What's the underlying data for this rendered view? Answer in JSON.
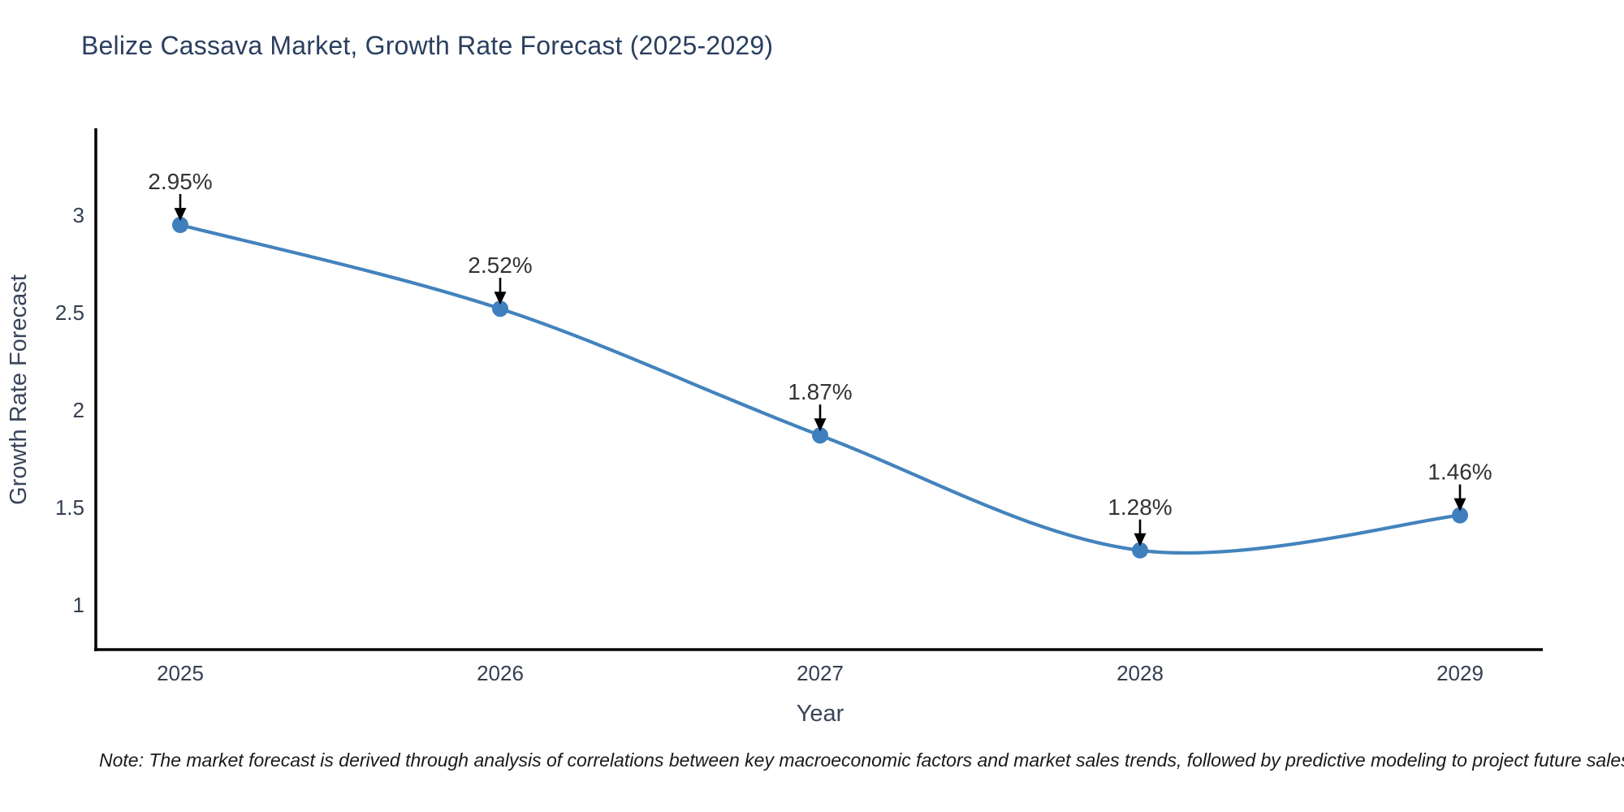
{
  "title": "Belize Cassava Market, Growth Rate Forecast (2025-2029)",
  "note": "Note: The market forecast is derived through analysis of correlations between key macroeconomic factors and market sales trends, followed by predictive modeling to project future sales",
  "chart_data": {
    "type": "line",
    "title": "Belize Cassava Market, Growth Rate Forecast (2025-2029)",
    "xlabel": "Year",
    "ylabel": "Growth Rate Forecast",
    "x": [
      2025,
      2026,
      2027,
      2028,
      2029
    ],
    "y": [
      2.95,
      2.52,
      1.87,
      1.28,
      1.46
    ],
    "point_labels": [
      "2.95%",
      "2.52%",
      "1.87%",
      "1.28%",
      "1.46%"
    ],
    "xticks": [
      "2025",
      "2026",
      "2027",
      "2028",
      "2029"
    ],
    "yticks": [
      "1",
      "1.5",
      "2",
      "2.5",
      "3"
    ],
    "ytick_values": [
      1,
      1.5,
      2,
      2.5,
      3
    ],
    "xlim": [
      2024.74,
      2029.26
    ],
    "ylim": [
      0.77,
      3.44
    ],
    "grid": false,
    "legend": "none",
    "line_shape": "spline",
    "colors": {
      "line": "#4383bd",
      "marker": "#3f7fbe",
      "annotation_arrow": "#000000",
      "annotation_text": "#333333",
      "axis_line": "#000000",
      "title_text": "#2a3f5f",
      "tick_text": "#333f50"
    }
  }
}
